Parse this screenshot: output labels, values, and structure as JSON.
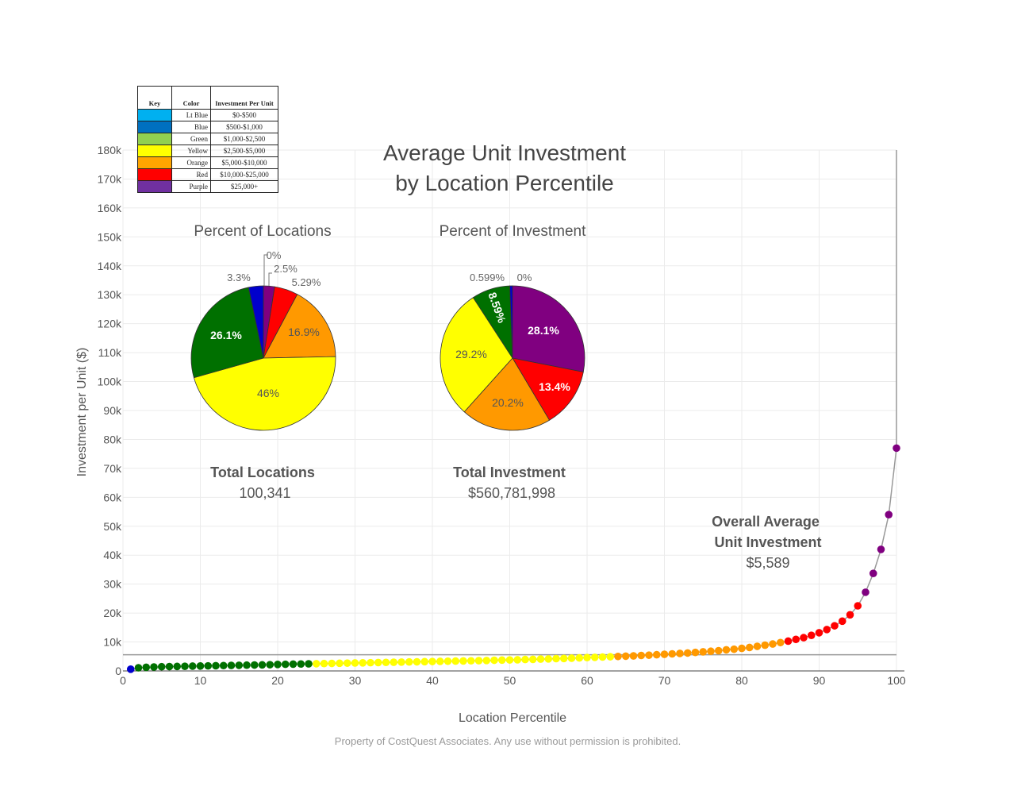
{
  "chart_data": {
    "type": "scatter",
    "title_line1": "Average Unit Investment",
    "title_line2": "by Location Percentile",
    "xlabel": "Location Percentile",
    "ylabel": "Investment per Unit ($)",
    "xlim": [
      0,
      100
    ],
    "ylim": [
      0,
      180000
    ],
    "xticks": [
      0,
      10,
      20,
      30,
      40,
      50,
      60,
      70,
      80,
      90,
      100
    ],
    "xtick_labels": [
      "0",
      "10",
      "20",
      "30",
      "40",
      "50",
      "60",
      "70",
      "80",
      "90",
      "100"
    ],
    "yticks": [
      0,
      10000,
      20000,
      30000,
      40000,
      50000,
      60000,
      70000,
      80000,
      90000,
      100000,
      110000,
      120000,
      130000,
      140000,
      150000,
      160000,
      170000,
      180000
    ],
    "ytick_labels": [
      "0",
      "10k",
      "20k",
      "30k",
      "40k",
      "50k",
      "60k",
      "70k",
      "80k",
      "90k",
      "100k",
      "110k",
      "120k",
      "130k",
      "140k",
      "150k",
      "160k",
      "170k",
      "180k"
    ],
    "grid": true,
    "average_line": 5589,
    "curve_end": [
      100,
      180000
    ],
    "points": [
      [
        1,
        600
      ],
      [
        2,
        1100
      ],
      [
        3,
        1250
      ],
      [
        4,
        1350
      ],
      [
        5,
        1450
      ],
      [
        6,
        1500
      ],
      [
        7,
        1550
      ],
      [
        8,
        1600
      ],
      [
        9,
        1650
      ],
      [
        10,
        1700
      ],
      [
        11,
        1750
      ],
      [
        12,
        1800
      ],
      [
        13,
        1850
      ],
      [
        14,
        1900
      ],
      [
        15,
        1950
      ],
      [
        16,
        2000
      ],
      [
        17,
        2050
      ],
      [
        18,
        2100
      ],
      [
        19,
        2150
      ],
      [
        20,
        2250
      ],
      [
        21,
        2300
      ],
      [
        22,
        2350
      ],
      [
        23,
        2400
      ],
      [
        24,
        2450
      ],
      [
        25,
        2500
      ],
      [
        26,
        2550
      ],
      [
        27,
        2600
      ],
      [
        28,
        2650
      ],
      [
        29,
        2700
      ],
      [
        30,
        2750
      ],
      [
        31,
        2800
      ],
      [
        32,
        2850
      ],
      [
        33,
        2900
      ],
      [
        34,
        2950
      ],
      [
        35,
        3000
      ],
      [
        36,
        3050
      ],
      [
        37,
        3100
      ],
      [
        38,
        3150
      ],
      [
        39,
        3200
      ],
      [
        40,
        3250
      ],
      [
        41,
        3300
      ],
      [
        42,
        3350
      ],
      [
        43,
        3400
      ],
      [
        44,
        3450
      ],
      [
        45,
        3500
      ],
      [
        46,
        3550
      ],
      [
        47,
        3600
      ],
      [
        48,
        3700
      ],
      [
        49,
        3750
      ],
      [
        50,
        3800
      ],
      [
        51,
        3850
      ],
      [
        52,
        3950
      ],
      [
        53,
        4000
      ],
      [
        54,
        4100
      ],
      [
        55,
        4150
      ],
      [
        56,
        4250
      ],
      [
        57,
        4300
      ],
      [
        58,
        4400
      ],
      [
        59,
        4500
      ],
      [
        60,
        4600
      ],
      [
        61,
        4700
      ],
      [
        62,
        4800
      ],
      [
        63,
        4900
      ],
      [
        64,
        5000
      ],
      [
        65,
        5100
      ],
      [
        66,
        5200
      ],
      [
        67,
        5350
      ],
      [
        68,
        5450
      ],
      [
        69,
        5600
      ],
      [
        70,
        5750
      ],
      [
        71,
        5900
      ],
      [
        72,
        6050
      ],
      [
        73,
        6200
      ],
      [
        74,
        6400
      ],
      [
        75,
        6600
      ],
      [
        76,
        6800
      ],
      [
        77,
        7000
      ],
      [
        78,
        7300
      ],
      [
        79,
        7500
      ],
      [
        80,
        7800
      ],
      [
        81,
        8100
      ],
      [
        82,
        8500
      ],
      [
        83,
        8900
      ],
      [
        84,
        9300
      ],
      [
        85,
        9800
      ],
      [
        86,
        10300
      ],
      [
        87,
        10900
      ],
      [
        88,
        11500
      ],
      [
        89,
        12300
      ],
      [
        90,
        13200
      ],
      [
        91,
        14300
      ],
      [
        92,
        15600
      ],
      [
        93,
        17200
      ],
      [
        94,
        19400
      ],
      [
        95,
        22500
      ],
      [
        96,
        27200
      ],
      [
        97,
        33700
      ],
      [
        98,
        42000
      ],
      [
        99,
        54000
      ],
      [
        100,
        77000
      ]
    ],
    "color_bands": [
      {
        "name": "Lt Blue",
        "hex": "#00b0f0",
        "min": 0,
        "max": 500,
        "range": "$0-$500"
      },
      {
        "name": "Blue",
        "hex": "#0000cc",
        "min": 500,
        "max": 1000,
        "range": "$500-$1,000"
      },
      {
        "name": "Green",
        "hex": "#007000",
        "min": 1000,
        "max": 2500,
        "range": "$1,000-$2,500"
      },
      {
        "name": "Yellow",
        "hex": "#ffff00",
        "min": 2500,
        "max": 5000,
        "range": "$2,500-$5,000"
      },
      {
        "name": "Orange",
        "hex": "#ff9900",
        "min": 5000,
        "max": 10000,
        "range": "$5,000-$10,000"
      },
      {
        "name": "Red",
        "hex": "#ff0000",
        "min": 10000,
        "max": 25000,
        "range": "$10,000-$25,000"
      },
      {
        "name": "Purple",
        "hex": "#800080",
        "min": 25000,
        "max": null,
        "range": "$25,000+"
      }
    ],
    "legend_swatches": [
      "#00b0f0",
      "#0070c0",
      "#92d050",
      "#ffff00",
      "#ffa500",
      "#ff0000",
      "#7030a0"
    ],
    "pies": [
      {
        "title": "Percent of Locations",
        "slices": [
          {
            "color": "Purple",
            "hex": "#800080",
            "value": 2.5,
            "label": "2.5%"
          },
          {
            "color": "Red",
            "hex": "#ff0000",
            "value": 5.29,
            "label": "5.29%"
          },
          {
            "color": "Orange",
            "hex": "#ff9900",
            "value": 16.9,
            "label": "16.9%"
          },
          {
            "color": "Yellow",
            "hex": "#ffff00",
            "value": 46,
            "label": "46%"
          },
          {
            "color": "Green",
            "hex": "#007000",
            "value": 26.1,
            "label": "26.1%"
          },
          {
            "color": "Blue",
            "hex": "#0000cc",
            "value": 3.3,
            "label": "3.3%"
          },
          {
            "color": "Lt Blue",
            "hex": "#00b0f0",
            "value": 0,
            "label": "0%"
          }
        ]
      },
      {
        "title": "Percent of Investment",
        "slices": [
          {
            "color": "Purple",
            "hex": "#800080",
            "value": 28.1,
            "label": "28.1%"
          },
          {
            "color": "Red",
            "hex": "#ff0000",
            "value": 13.4,
            "label": "13.4%"
          },
          {
            "color": "Orange",
            "hex": "#ff9900",
            "value": 20.2,
            "label": "20.2%"
          },
          {
            "color": "Yellow",
            "hex": "#ffff00",
            "value": 29.2,
            "label": "29.2%"
          },
          {
            "color": "Green",
            "hex": "#007000",
            "value": 8.59,
            "label": "8.59%"
          },
          {
            "color": "Blue",
            "hex": "#0000cc",
            "value": 0.599,
            "label": "0.599%"
          },
          {
            "color": "Lt Blue",
            "hex": "#00b0f0",
            "value": 0,
            "label": "0%"
          }
        ]
      }
    ]
  },
  "legend": {
    "headers": {
      "key": "Key",
      "color": "Color",
      "range": "Investment Per Unit"
    }
  },
  "stats": {
    "locations_label": "Total Locations",
    "locations_value": "100,341",
    "investment_label": "Total Investment",
    "investment_value": "$560,781,998",
    "average_label_line1": "Overall Average",
    "average_label_line2": "Unit Investment",
    "average_value": "$5,589"
  },
  "footnote": "Property of CostQuest Associates. Any use without permission is prohibited."
}
